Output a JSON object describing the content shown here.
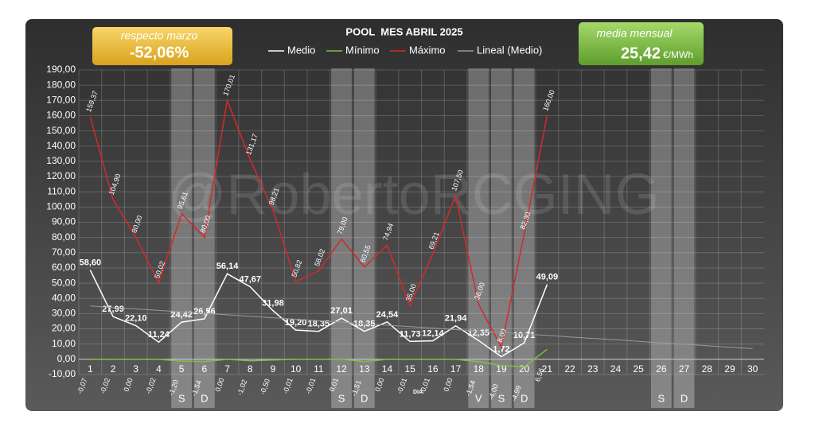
{
  "chart_data": {
    "type": "line",
    "title": "POOL  MES ABRIL 2025",
    "x_label": "DIA",
    "watermark": "@RobertoRCGING",
    "annotations": {
      "change_label": "respecto marzo",
      "change_value": "-52,06%",
      "avg_label": "media mensual",
      "avg_value": "25,42",
      "avg_unit": "€/MWh"
    },
    "categories": [
      "1",
      "2",
      "3",
      "4",
      "5",
      "6",
      "7",
      "8",
      "9",
      "10",
      "11",
      "12",
      "13",
      "14",
      "15",
      "16",
      "17",
      "18",
      "19",
      "20",
      "21",
      "22",
      "23",
      "24",
      "25",
      "26",
      "27",
      "28",
      "29",
      "30"
    ],
    "day_types": [
      null,
      null,
      null,
      null,
      "S",
      "D",
      null,
      null,
      null,
      null,
      null,
      "S",
      "D",
      null,
      null,
      null,
      null,
      "V",
      "S",
      "D",
      null,
      null,
      null,
      null,
      null,
      "S",
      "D",
      null,
      null,
      null
    ],
    "ylim": [
      -10,
      190
    ],
    "yticks": [
      {
        "value": -10,
        "label": "-10,00"
      },
      {
        "value": 0,
        "label": "0,00"
      },
      {
        "value": 10,
        "label": "10,00"
      },
      {
        "value": 20,
        "label": "20,00"
      },
      {
        "value": 30,
        "label": "30,00"
      },
      {
        "value": 40,
        "label": "40,00"
      },
      {
        "value": 50,
        "label": "50,00"
      },
      {
        "value": 60,
        "label": "60,00"
      },
      {
        "value": 70,
        "label": "70,00"
      },
      {
        "value": 80,
        "label": "80,00"
      },
      {
        "value": 90,
        "label": "90,00"
      },
      {
        "value": 100,
        "label": "100,00"
      },
      {
        "value": 110,
        "label": "110,00"
      },
      {
        "value": 120,
        "label": "120,00"
      },
      {
        "value": 130,
        "label": "130,00"
      },
      {
        "value": 140,
        "label": "140,00"
      },
      {
        "value": 150,
        "label": "150,00"
      },
      {
        "value": 160,
        "label": "160,00"
      },
      {
        "value": 170,
        "label": "170,00"
      },
      {
        "value": 180,
        "label": "180,00"
      },
      {
        "value": 190,
        "label": "190,00"
      }
    ],
    "grid": true,
    "series": [
      {
        "name": "Medio",
        "color": "#ffffff",
        "label_style": "medio",
        "values": [
          58.6,
          27.99,
          22.1,
          11.24,
          24.42,
          26.56,
          56.14,
          47.67,
          31.98,
          19.2,
          18.35,
          27.01,
          18.35,
          24.54,
          11.73,
          12.14,
          21.94,
          12.35,
          1.72,
          10.71,
          49.09,
          null,
          null,
          null,
          null,
          null,
          null,
          null,
          null,
          null
        ],
        "value_labels": [
          "58,60",
          "27,99",
          "22,10",
          "11,24",
          "24,42",
          "26,56",
          "56,14",
          "47,67",
          "31,98",
          "19,20",
          "18,35",
          "27,01",
          "18,35",
          "24,54",
          "11,73",
          "12,14",
          "21,94",
          "12,35",
          "1,72",
          "10,71",
          "49,09",
          null,
          null,
          null,
          null,
          null,
          null,
          null,
          null,
          null
        ]
      },
      {
        "name": "Mínimo",
        "color": "#7cc142",
        "label_style": "below",
        "values": [
          -0.07,
          -0.02,
          0.0,
          -0.02,
          -1.2,
          -1.54,
          0.0,
          -1.02,
          -0.5,
          -0.01,
          -0.01,
          0.01,
          -1.51,
          0.0,
          -0.01,
          -0.01,
          0.0,
          -1.54,
          -4.0,
          -4.99,
          6.56,
          null,
          null,
          null,
          null,
          null,
          null,
          null,
          null,
          null
        ],
        "value_labels": [
          "-0,07",
          "-0,02",
          "0,00",
          "-0,02",
          "-1,20",
          "-1,54",
          "0,00",
          "-1,02",
          "-0,50",
          "-0,01",
          "-0,01",
          "0,01",
          "-1,51",
          "0,00",
          "-0,01",
          "-0,01",
          "0,00",
          "-1,54",
          "-4,00",
          "-4,99",
          "6,56",
          null,
          null,
          null,
          null,
          null,
          null,
          null,
          null,
          null
        ]
      },
      {
        "name": "Máximo",
        "color": "#d42a2a",
        "label_style": "above",
        "values": [
          159.37,
          104.9,
          80.0,
          50.02,
          95.61,
          80.0,
          170.01,
          131.17,
          98.21,
          50.82,
          58.02,
          79.0,
          60.55,
          74.94,
          35.0,
          69.21,
          107.5,
          36.0,
          8.0,
          82.3,
          160.0,
          null,
          null,
          null,
          null,
          null,
          null,
          null,
          null,
          null
        ],
        "value_labels": [
          "159,37",
          "104,90",
          "80,00",
          "50,02",
          "95,61",
          "80,00",
          "170,01",
          "131,17",
          "98,21",
          "50,82",
          "58,02",
          "79,00",
          "60,55",
          "74,94",
          "35,00",
          "69,21",
          "107,50",
          "36,00",
          "8,00",
          "82,30",
          "160,00",
          null,
          null,
          null,
          null,
          null,
          null,
          null,
          null,
          null
        ]
      },
      {
        "name": "Lineal (Medio)",
        "color": "#9a9a9a",
        "label_style": "none",
        "values": [
          35.0,
          34.0,
          33.1,
          32.1,
          31.1,
          30.2,
          29.2,
          28.2,
          27.3,
          26.3,
          25.3,
          24.4,
          23.4,
          22.4,
          21.5,
          20.5,
          19.5,
          18.6,
          17.6,
          16.6,
          15.7,
          14.7,
          13.7,
          12.8,
          11.8,
          10.8,
          9.9,
          8.9,
          7.9,
          7.0
        ]
      }
    ]
  }
}
